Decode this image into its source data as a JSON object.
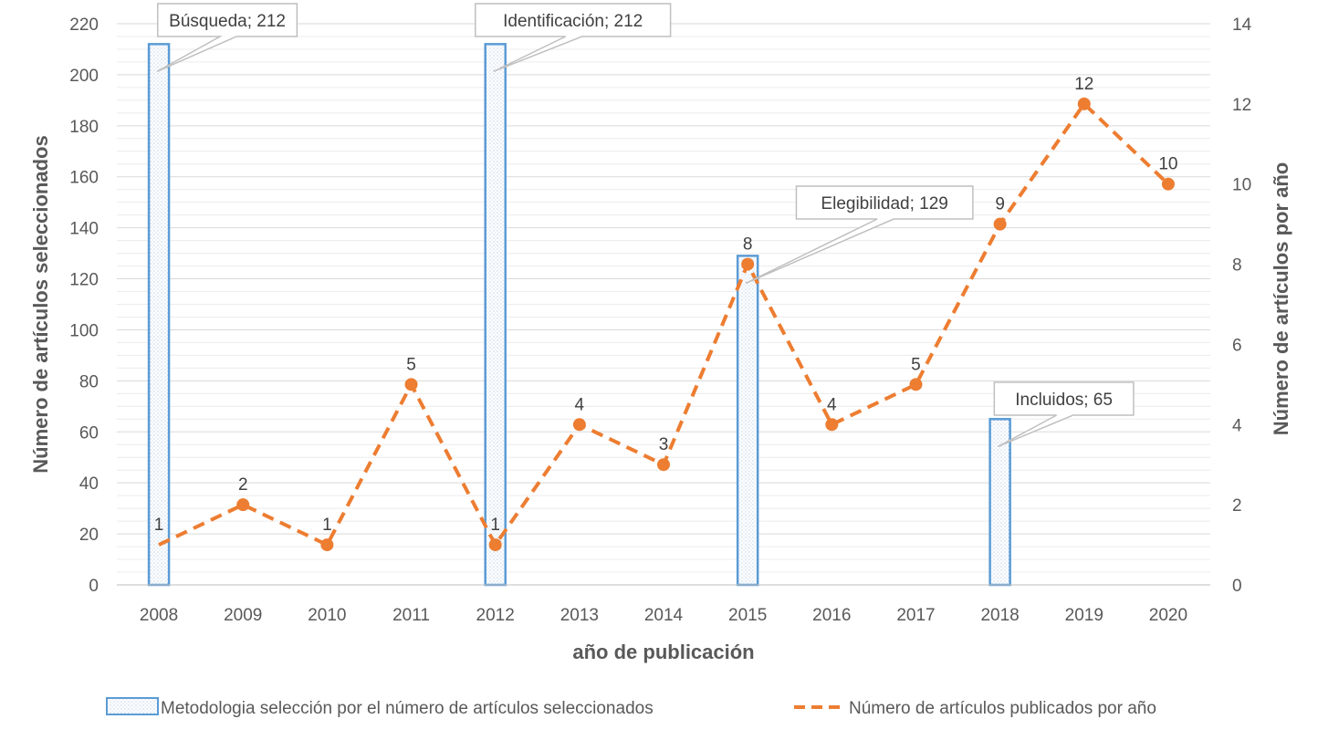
{
  "chart_data": {
    "type": "bar",
    "title": "",
    "xlabel": "año de publicación",
    "ylabel": "Número de artículos seleccionados",
    "y2label": "Número de artículos por año",
    "categories": [
      "2008",
      "2009",
      "2010",
      "2011",
      "2012",
      "2013",
      "2014",
      "2015",
      "2016",
      "2017",
      "2018",
      "2019",
      "2020"
    ],
    "ylim": [
      0,
      220
    ],
    "yticks": [
      0,
      20,
      40,
      60,
      80,
      100,
      120,
      140,
      160,
      180,
      200,
      220
    ],
    "y2lim": [
      0,
      14
    ],
    "y2ticks": [
      0,
      2,
      4,
      6,
      8,
      10,
      12,
      14
    ],
    "series": [
      {
        "name": "Metodologia selección por el número de artículos seleccionados",
        "type": "bar",
        "axis": "left",
        "color": "#5B9BD5",
        "values": [
          212,
          null,
          null,
          null,
          212,
          null,
          null,
          129,
          null,
          null,
          65,
          null,
          null
        ],
        "callouts": [
          "Búsqueda; 212",
          null,
          null,
          null,
          "Identificación; 212",
          null,
          null,
          "Elegibilidad; 129",
          null,
          null,
          "Incluidos; 65",
          null,
          null
        ]
      },
      {
        "name": "Número de artículos publicados por año",
        "type": "line",
        "style": "dashed",
        "axis": "right",
        "color": "#ED7D31",
        "values": [
          1,
          2,
          1,
          5,
          1,
          4,
          3,
          8,
          4,
          5,
          9,
          12,
          10
        ]
      }
    ],
    "legend": "bottom",
    "grid": true
  }
}
